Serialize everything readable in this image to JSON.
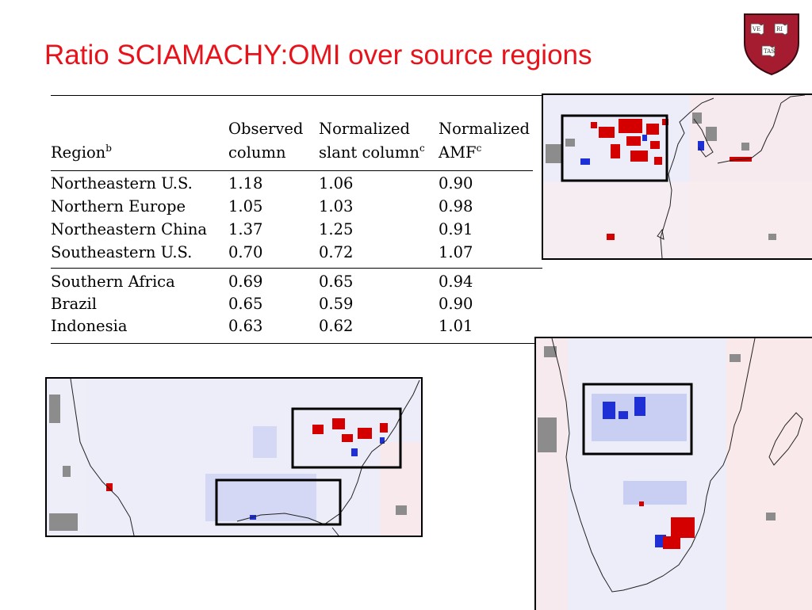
{
  "slide": {
    "title": "Ratio SCIAMACHY:OMI over source regions"
  },
  "logo": {
    "icon": "university-shield-icon",
    "motto": [
      "VE",
      "RI",
      "TAS"
    ]
  },
  "table": {
    "headers": {
      "region": "Region",
      "region_sup": "b",
      "observed_line1": "Observed",
      "observed_line2": "column",
      "slant_line1": "Normalized",
      "slant_line2": "slant column",
      "slant_sup": "c",
      "amf_line1": "Normalized",
      "amf_line2": "AMF",
      "amf_sup": "c"
    },
    "rows": [
      {
        "region": "Northeastern U.S.",
        "observed": "1.18",
        "slant": "1.06",
        "amf": "0.90"
      },
      {
        "region": "Northern Europe",
        "observed": "1.05",
        "slant": "1.03",
        "amf": "0.98"
      },
      {
        "region": "Northeastern China",
        "observed": "1.37",
        "slant": "1.25",
        "amf": "0.91"
      },
      {
        "region": "Southeastern U.S.",
        "observed": "0.70",
        "slant": "0.72",
        "amf": "1.07"
      },
      {
        "region": "Southern Africa",
        "observed": "0.69",
        "slant": "0.65",
        "amf": "0.94"
      },
      {
        "region": "Brazil",
        "observed": "0.65",
        "slant": "0.59",
        "amf": "0.90"
      },
      {
        "region": "Indonesia",
        "observed": "0.63",
        "slant": "0.62",
        "amf": "1.01"
      }
    ]
  },
  "colors": {
    "title": "#e8121a",
    "shield": "#a51c30",
    "ratio_high": "#d40000",
    "ratio_low": "#1f2fd6",
    "missing": "#8c8c8c"
  },
  "maps": [
    {
      "name": "East Asia"
    },
    {
      "name": "United States"
    },
    {
      "name": "Southern Africa"
    }
  ]
}
